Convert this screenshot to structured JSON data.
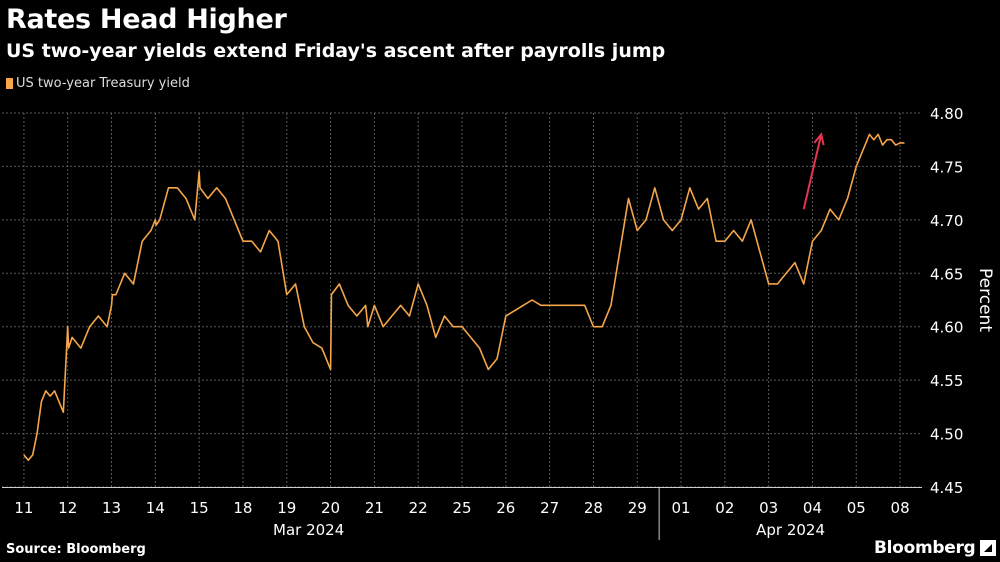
{
  "title": "Rates Head Higher",
  "subtitle": "US two-year yields extend Friday's ascent after payrolls jump",
  "source": "Source: Bloomberg",
  "brand": "Bloomberg",
  "colors": {
    "series": "#f5a54a",
    "arrow": "#e8344e",
    "grid": "#5a5a5a",
    "background": "#000000"
  },
  "chart_data": {
    "type": "line",
    "title": "Rates Head Higher",
    "subtitle": "US two-year yields extend Friday's ascent after payrolls jump",
    "ylabel": "Percent",
    "ylim": [
      4.45,
      4.8
    ],
    "yticks": [
      "4.45",
      "4.50",
      "4.55",
      "4.60",
      "4.65",
      "4.70",
      "4.75",
      "4.80"
    ],
    "ytick_values": [
      4.45,
      4.5,
      4.55,
      4.6,
      4.65,
      4.7,
      4.75,
      4.8
    ],
    "grid": true,
    "legend_position": "top-left",
    "categories": [
      "11",
      "12",
      "13",
      "14",
      "15",
      "18",
      "19",
      "20",
      "21",
      "22",
      "25",
      "26",
      "27",
      "28",
      "29",
      "01",
      "02",
      "03",
      "04",
      "05",
      "08"
    ],
    "month_labels": [
      "Mar 2024",
      "Apr 2024"
    ],
    "series": [
      {
        "name": "US two-year Treasury yield",
        "x": [
          0,
          0.1,
          0.2,
          0.3,
          0.4,
          0.5,
          0.6,
          0.7,
          0.8,
          0.9,
          1.0,
          1.02,
          1.1,
          1.3,
          1.5,
          1.7,
          1.9,
          2.0,
          2.02,
          2.1,
          2.3,
          2.5,
          2.7,
          2.9,
          3.0,
          3.02,
          3.1,
          3.3,
          3.5,
          3.7,
          3.9,
          4.0,
          4.02,
          4.2,
          4.4,
          4.6,
          4.8,
          5.0,
          5.2,
          5.4,
          5.6,
          5.8,
          6.0,
          6.2,
          6.4,
          6.6,
          6.8,
          7.0,
          7.02,
          7.2,
          7.4,
          7.6,
          7.8,
          7.85,
          8.0,
          8.2,
          8.4,
          8.6,
          8.8,
          9.0,
          9.2,
          9.4,
          9.6,
          9.8,
          10.0,
          10.2,
          10.4,
          10.6,
          10.8,
          11.0,
          11.2,
          11.4,
          11.6,
          11.8,
          12.0,
          12.2,
          12.4,
          12.6,
          12.8,
          13.0,
          13.2,
          13.4,
          13.6,
          13.8,
          14.0,
          14.2,
          14.4,
          14.6,
          14.8,
          15.0,
          15.2,
          15.4,
          15.6,
          15.8,
          16.0,
          16.2,
          16.4,
          16.6,
          16.8,
          17.0,
          17.2,
          17.4,
          17.6,
          17.8,
          18.0,
          18.2,
          18.4,
          18.6,
          18.8,
          19.0,
          19.1,
          19.2,
          19.3,
          19.4,
          19.5,
          19.6,
          19.7,
          19.8,
          19.9,
          20.0,
          20.1
        ],
        "values": [
          4.48,
          4.475,
          4.48,
          4.5,
          4.53,
          4.54,
          4.535,
          4.54,
          4.53,
          4.52,
          4.6,
          4.58,
          4.59,
          4.58,
          4.6,
          4.61,
          4.6,
          4.62,
          4.63,
          4.63,
          4.65,
          4.64,
          4.68,
          4.69,
          4.7,
          4.695,
          4.7,
          4.73,
          4.73,
          4.72,
          4.7,
          4.745,
          4.73,
          4.72,
          4.73,
          4.72,
          4.7,
          4.68,
          4.68,
          4.67,
          4.69,
          4.68,
          4.63,
          4.64,
          4.6,
          4.585,
          4.58,
          4.56,
          4.63,
          4.64,
          4.62,
          4.61,
          4.62,
          4.6,
          4.62,
          4.6,
          4.61,
          4.62,
          4.61,
          4.64,
          4.62,
          4.59,
          4.61,
          4.6,
          4.6,
          4.59,
          4.58,
          4.56,
          4.57,
          4.61,
          4.615,
          4.62,
          4.625,
          4.62,
          4.62,
          4.62,
          4.62,
          4.62,
          4.62,
          4.6,
          4.6,
          4.62,
          4.67,
          4.72,
          4.69,
          4.7,
          4.73,
          4.7,
          4.69,
          4.7,
          4.73,
          4.71,
          4.72,
          4.68,
          4.68,
          4.69,
          4.68,
          4.7,
          4.67,
          4.64,
          4.64,
          4.65,
          4.66,
          4.64,
          4.68,
          4.69,
          4.71,
          4.7,
          4.72,
          4.75,
          4.76,
          4.77,
          4.78,
          4.775,
          4.78,
          4.77,
          4.775,
          4.775,
          4.77,
          4.772,
          4.772
        ]
      }
    ],
    "annotations": [
      {
        "type": "arrow",
        "from": [
          17.8,
          4.71
        ],
        "to": [
          18.2,
          4.78
        ]
      }
    ]
  }
}
